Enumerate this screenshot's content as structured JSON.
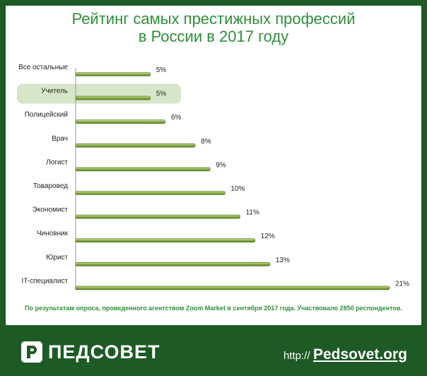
{
  "title_line1": "Рейтинг самых престижных профессий",
  "title_line2": "в России в 2017 году",
  "note": "По результатам опроса, проведенного агентством Zoom Market в сентября 2017 года. Участвовало 2850 респондентов.",
  "footer": {
    "logo_text": "ПЕДСОВЕТ",
    "url_prefix": "http://",
    "url_domain": "Pedsovet.org"
  },
  "colors": {
    "background": "#1e5a25",
    "title": "#2f8f3a",
    "bar": "#8fb04a",
    "highlight": "#d6e6c8"
  },
  "chart_data": {
    "type": "bar",
    "orientation": "horizontal",
    "highlighted_category": "Учитель",
    "categories": [
      "Все остальные",
      "Учитель",
      "Полицейский",
      "Врач",
      "Логист",
      "Товаровед",
      "Экономист",
      "Чиновник",
      "Юрист",
      "IT-специалист"
    ],
    "values": [
      5,
      5,
      6,
      8,
      9,
      10,
      11,
      12,
      13,
      21
    ],
    "value_labels": [
      "5%",
      "5%",
      "6%",
      "8%",
      "9%",
      "10%",
      "11%",
      "12%",
      "13%",
      "21%"
    ],
    "unit": "%",
    "xlim": [
      0,
      21
    ]
  }
}
